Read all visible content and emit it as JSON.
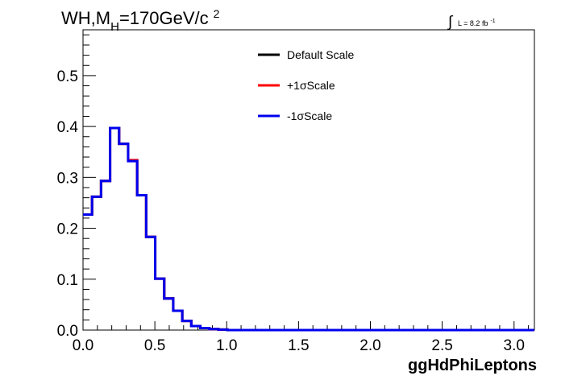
{
  "chart_data": {
    "type": "line",
    "title_main": "WH,M",
    "title_sub": "H",
    "title_rest": "=170GeV/c",
    "title_sup": "2",
    "lumi_label": "L = 8.2 fb",
    "lumi_sup": "-1",
    "xlabel": "ggHdPhiLeptons",
    "ylabel": "",
    "xlim": [
      0.0,
      3.1416
    ],
    "ylim": [
      0.0,
      0.59
    ],
    "grid": false,
    "legend_position": "top-center",
    "x_ticks": [
      "0.0",
      "0.5",
      "1.0",
      "1.5",
      "2.0",
      "2.5",
      "3.0"
    ],
    "x_tick_values": [
      0.0,
      0.5,
      1.0,
      1.5,
      2.0,
      2.5,
      3.0
    ],
    "y_ticks": [
      "0.0",
      "0.1",
      "0.2",
      "0.3",
      "0.4",
      "0.5"
    ],
    "y_tick_values": [
      0.0,
      0.1,
      0.2,
      0.3,
      0.4,
      0.5
    ],
    "bin_width": 0.0628,
    "series": [
      {
        "name": "Default Scale",
        "color": "#000000",
        "values": [
          0.227,
          0.262,
          0.293,
          0.397,
          0.366,
          0.333,
          0.265,
          0.183,
          0.101,
          0.062,
          0.038,
          0.018,
          0.008,
          0.004,
          0.002,
          0.001,
          0,
          0,
          0,
          0,
          0,
          0,
          0,
          0,
          0,
          0,
          0,
          0,
          0,
          0,
          0,
          0,
          0,
          0,
          0,
          0,
          0,
          0,
          0,
          0,
          0,
          0,
          0,
          0,
          0,
          0,
          0,
          0,
          0,
          0
        ]
      },
      {
        "name": "+1σScale",
        "color": "#ff0000",
        "values": [
          0.227,
          0.262,
          0.293,
          0.397,
          0.366,
          0.334,
          0.265,
          0.183,
          0.101,
          0.062,
          0.038,
          0.018,
          0.008,
          0.004,
          0.002,
          0.001,
          0,
          0,
          0,
          0,
          0,
          0,
          0,
          0,
          0,
          0,
          0,
          0,
          0,
          0,
          0,
          0,
          0,
          0,
          0,
          0,
          0,
          0,
          0,
          0,
          0,
          0,
          0,
          0,
          0,
          0,
          0,
          0,
          0,
          0
        ]
      },
      {
        "name": "-1σScale",
        "color": "#0000ee",
        "values": [
          0.227,
          0.262,
          0.293,
          0.397,
          0.366,
          0.332,
          0.265,
          0.183,
          0.101,
          0.062,
          0.038,
          0.018,
          0.008,
          0.004,
          0.002,
          0.001,
          0,
          0,
          0,
          0,
          0,
          0,
          0,
          0,
          0,
          0,
          0,
          0,
          0,
          0,
          0,
          0,
          0,
          0,
          0,
          0,
          0,
          0,
          0,
          0,
          0,
          0,
          0,
          0,
          0,
          0,
          0,
          0,
          0,
          0
        ]
      }
    ]
  }
}
